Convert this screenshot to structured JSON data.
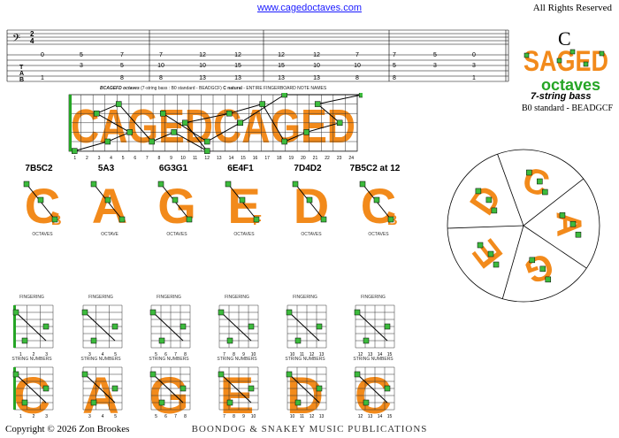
{
  "header": {
    "url": "www.cagedoctaves.com",
    "rights": "All Rights Reserved"
  },
  "logo": {
    "key": "C",
    "word1": "SAGED",
    "word2": "octaves",
    "subtitle": "7-string bass",
    "tuning": "B0 standard - BEADGCF"
  },
  "tab": {
    "label": "T A B",
    "fingering_label": "FINGERING",
    "time_top": "2",
    "time_bottom": "4",
    "strings": [
      [
        "0",
        "",
        "7",
        "",
        "12",
        "",
        "12",
        "",
        "8",
        "",
        "3",
        ""
      ],
      [
        "5",
        "",
        "5",
        "",
        "",
        "",
        "",
        "",
        "",
        "",
        "",
        ""
      ]
    ],
    "columns": [
      {
        "top": "0",
        "mid": "",
        "bot": "1"
      },
      {
        "top": "5",
        "mid": "3",
        "bot": ""
      },
      {
        "top": "7",
        "mid": "5",
        "bot": "8"
      },
      {
        "top": "7",
        "mid": "10",
        "bot": "8"
      },
      {
        "top": "12",
        "mid": "10",
        "bot": "13"
      },
      {
        "top": "12",
        "mid": "15",
        "bot": "13"
      },
      {
        "top": "12",
        "mid": "15",
        "bot": "13"
      },
      {
        "top": "12",
        "mid": "10",
        "bot": "13"
      },
      {
        "top": "7",
        "mid": "10",
        "bot": "8"
      },
      {
        "top": "7",
        "mid": "5",
        "bot": "8"
      },
      {
        "top": "5",
        "mid": "3",
        "bot": ""
      },
      {
        "top": "0",
        "mid": "3",
        "bot": "1"
      }
    ]
  },
  "fretboard": {
    "title_bold": "BCAGEFD octaves",
    "title_rest": "(7-string bass : B0 standard - BEADGCF)",
    "title_key": "C natural",
    "title_end": "- ENTIRE FINGERBOARD NOTE NAMES",
    "watermark": "CAGEDCAGED",
    "fret_numbers": [
      "1",
      "2",
      "3",
      "4",
      "5",
      "6",
      "7",
      "8",
      "9",
      "10",
      "11",
      "12",
      "13",
      "14",
      "15",
      "16",
      "17",
      "18",
      "19",
      "20",
      "21",
      "22",
      "23",
      "24"
    ]
  },
  "shapes": [
    {
      "name": "7B5C2",
      "suffix": "",
      "letter": "C",
      "sub": "B",
      "caption": "OCTAVES"
    },
    {
      "name": "5A3",
      "suffix": "",
      "letter": "A",
      "sub": "",
      "caption": "OCTAVE"
    },
    {
      "name": "6G3G1",
      "suffix": "",
      "letter": "G",
      "sub": "",
      "caption": "OCTAVES"
    },
    {
      "name": "6E4F1",
      "suffix": "",
      "letter": "E",
      "sub": "F",
      "caption": "OCTAVES"
    },
    {
      "name": "7D4D2",
      "suffix": "",
      "letter": "D",
      "sub": "",
      "caption": "OCTAVES"
    },
    {
      "name": "7B5C2",
      "suffix": " at 12",
      "letter": "C",
      "sub": "B",
      "caption": "OCTAVES"
    }
  ],
  "diagrams": [
    {
      "caption_top": "FINGERING",
      "caption_bottom": "STRING NUMBERS",
      "frets_top": [
        "1",
        "2",
        "3"
      ],
      "frets_bottom": [
        "1",
        "2",
        "3"
      ]
    },
    {
      "caption_top": "FINGERING",
      "caption_bottom": "STRING NUMBERS",
      "frets_top": [
        "3",
        "4",
        "5"
      ],
      "frets_bottom": [
        "3",
        "4",
        "5"
      ]
    },
    {
      "caption_top": "FINGERING",
      "caption_bottom": "STRING NUMBERS",
      "frets_top": [
        "5",
        "6",
        "7",
        "8"
      ],
      "frets_bottom": [
        "5",
        "6",
        "7",
        "8"
      ]
    },
    {
      "caption_top": "FINGERING",
      "caption_bottom": "STRING NUMBERS",
      "frets_top": [
        "7",
        "8",
        "9",
        "10"
      ],
      "frets_bottom": [
        "7",
        "8",
        "9",
        "10"
      ]
    },
    {
      "caption_top": "FINGERING",
      "caption_bottom": "STRING NUMBERS",
      "frets_top": [
        "10",
        "11",
        "12",
        "13"
      ],
      "frets_bottom": [
        "10",
        "11",
        "12",
        "13"
      ]
    },
    {
      "caption_top": "FINGERING",
      "caption_bottom": "STRING NUMBERS",
      "frets_top": [
        "12",
        "13",
        "14",
        "15"
      ],
      "frets_bottom": [
        "12",
        "13",
        "14",
        "15"
      ]
    }
  ],
  "wheel_letters": [
    "C",
    "A",
    "G",
    "E",
    "D"
  ],
  "footer": {
    "copyright": "Copyright © 2026  Zon Brookes",
    "publisher": "BOONDOG & SNAKEY MUSIC PUBLICATIONS"
  },
  "colors": {
    "orange": "#f28a1b",
    "green": "#3dbb3d",
    "link": "#1a1aff",
    "accent_green": "#25a525"
  }
}
